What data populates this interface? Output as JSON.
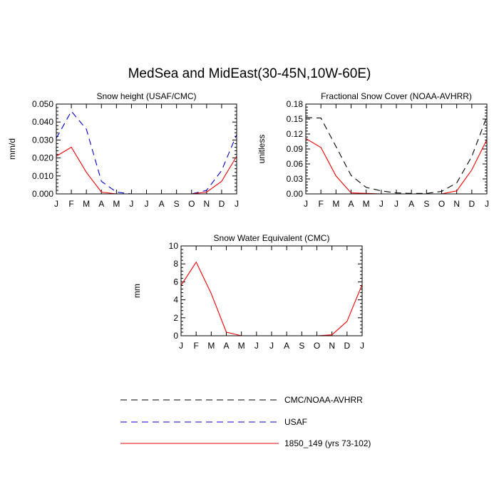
{
  "title": "MedSea and MidEast(30-45N,10W-60E)",
  "months": [
    "J",
    "F",
    "M",
    "A",
    "M",
    "J",
    "J",
    "A",
    "S",
    "O",
    "N",
    "D",
    "J"
  ],
  "legend": {
    "items": [
      {
        "label": "CMC/NOAA-AVHRR",
        "color": "#000000",
        "dash": "dashed"
      },
      {
        "label": "USAF",
        "color": "#0000cc",
        "dash": "dashed"
      },
      {
        "label": "1850_149 (yrs 73-102)",
        "color": "#ee0000",
        "dash": "solid"
      }
    ]
  },
  "chart_data": [
    {
      "type": "line",
      "title": "Snow height (USAF/CMC)",
      "ylabel": "mm/d",
      "ylim": [
        0,
        0.05
      ],
      "yticks": [
        "0.000",
        "0.010",
        "0.020",
        "0.030",
        "0.040",
        "0.050"
      ],
      "series": [
        {
          "name": "USAF",
          "color": "#0000cc",
          "dash": "dashed",
          "values": [
            0.031,
            0.046,
            0.036,
            0.007,
            0.001,
            0.0,
            0.0,
            0.0,
            0.0,
            0.0,
            0.002,
            0.013,
            0.033
          ]
        },
        {
          "name": "1850_149 (yrs 73-102)",
          "color": "#ee0000",
          "dash": "solid",
          "values": [
            0.021,
            0.026,
            0.012,
            0.001,
            0.0,
            0.0,
            0.0,
            0.0,
            0.0,
            0.0,
            0.001,
            0.007,
            0.021
          ]
        }
      ]
    },
    {
      "type": "line",
      "title": "Fractional Snow Cover (NOAA-AVHRR)",
      "ylabel": "unitless",
      "ylim": [
        0,
        0.18
      ],
      "yticks": [
        "0.00",
        "0.03",
        "0.06",
        "0.09",
        "0.12",
        "0.15",
        "0.18"
      ],
      "series": [
        {
          "name": "CMC/NOAA-AVHRR",
          "color": "#000000",
          "dash": "dashed",
          "values": [
            0.153,
            0.152,
            0.095,
            0.037,
            0.013,
            0.006,
            0.002,
            0.001,
            0.001,
            0.005,
            0.022,
            0.075,
            0.155
          ]
        },
        {
          "name": "1850_149 (yrs 73-102)",
          "color": "#ee0000",
          "dash": "solid",
          "values": [
            0.111,
            0.093,
            0.036,
            0.002,
            0.001,
            0.0,
            0.0,
            0.0,
            0.0,
            0.0,
            0.006,
            0.048,
            0.109
          ]
        }
      ]
    },
    {
      "type": "line",
      "title": "Snow Water Equivalent (CMC)",
      "ylabel": "mm",
      "ylim": [
        0,
        10
      ],
      "yticks": [
        "0",
        "2",
        "4",
        "6",
        "8",
        "10"
      ],
      "series": [
        {
          "name": "CMC/NOAA-AVHRR",
          "color": "#000000",
          "dash": "dashed",
          "values": [
            0,
            0,
            0,
            0,
            0,
            0,
            0,
            0,
            0,
            0,
            0,
            0,
            0
          ]
        },
        {
          "name": "1850_149 (yrs 73-102)",
          "color": "#ee0000",
          "dash": "solid",
          "values": [
            5.6,
            8.2,
            4.7,
            0.4,
            0.0,
            0.0,
            0.0,
            0.0,
            0.0,
            0.0,
            0.1,
            1.6,
            5.7
          ]
        }
      ]
    }
  ]
}
